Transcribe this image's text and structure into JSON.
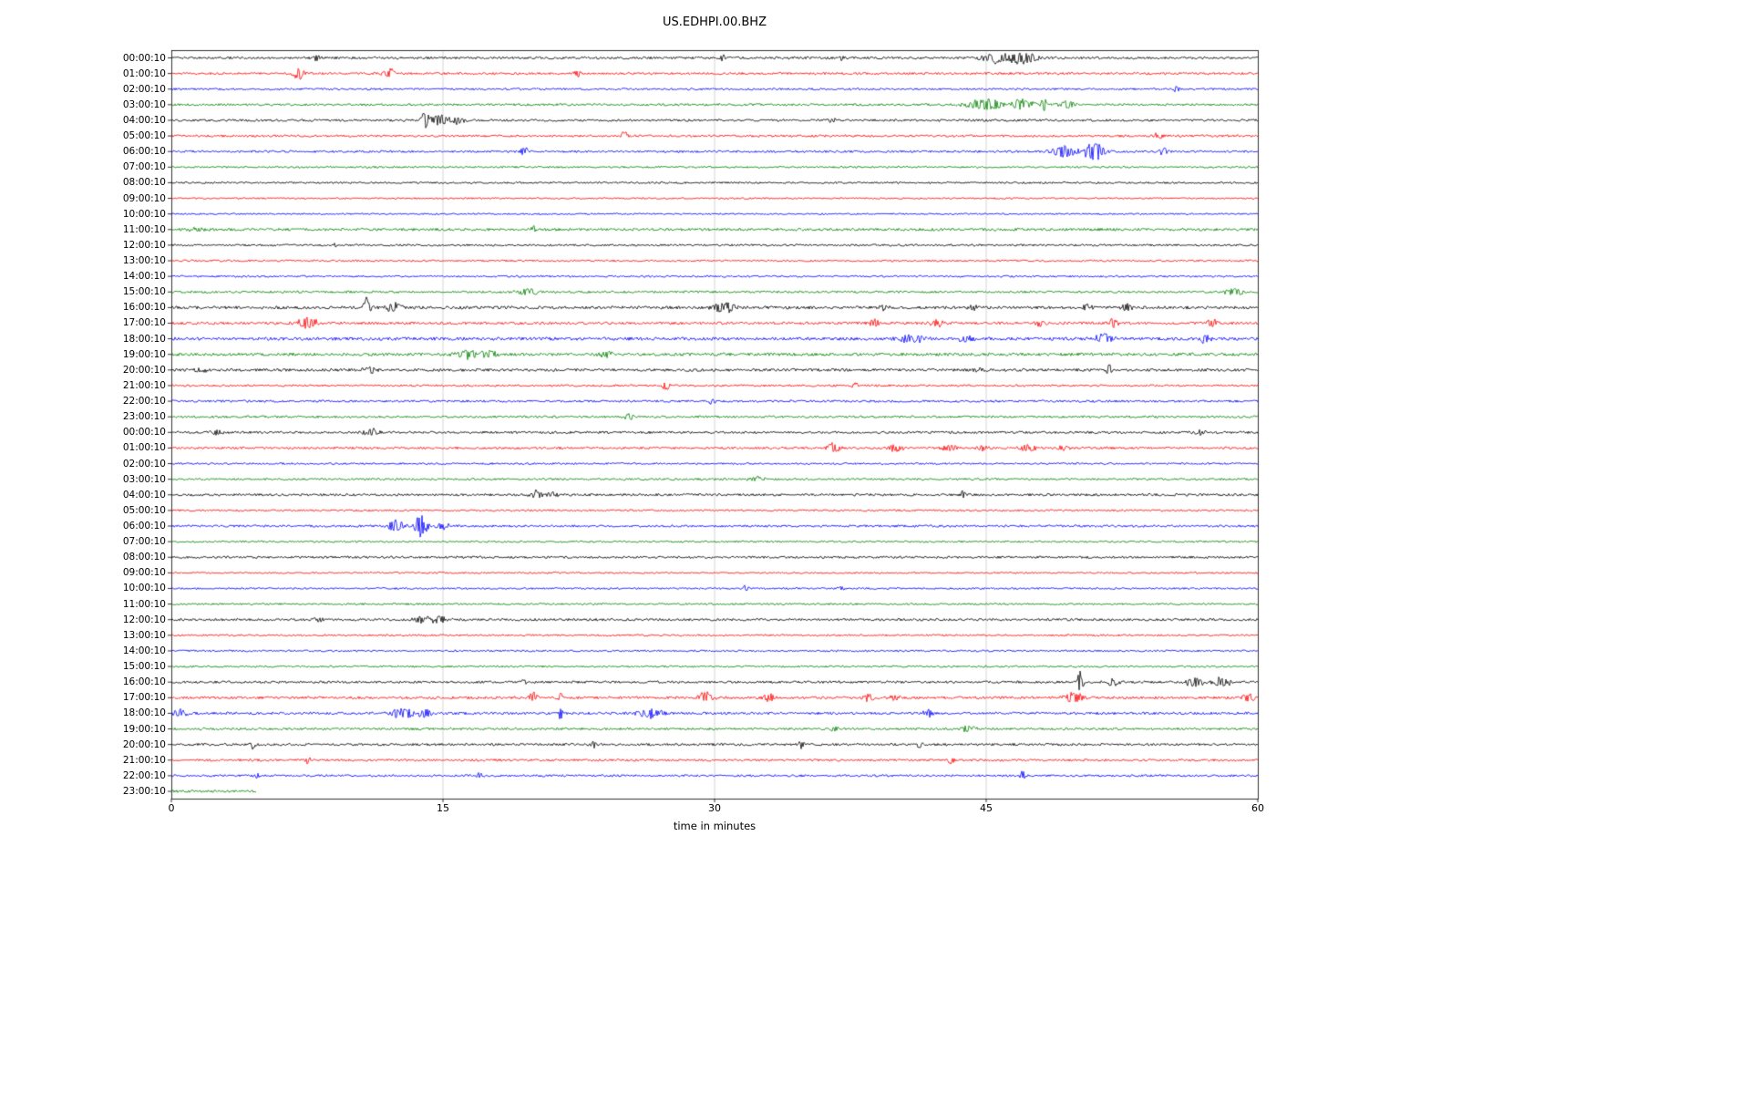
{
  "title": "US.EDHPI.00.BHZ",
  "xlabel": "time in minutes",
  "chart_data": {
    "type": "line",
    "title": "US.EDHPI.00.BHZ",
    "xlabel": "time in minutes",
    "xlim": [
      0,
      60
    ],
    "x_ticks": [
      "0",
      "15",
      "30",
      "45",
      "60"
    ],
    "x_tick_values": [
      0,
      15,
      30,
      45,
      60
    ],
    "grid": true,
    "grid_ticks": [
      15,
      30,
      45
    ],
    "colors_cycle": [
      "#000000",
      "#ff0000",
      "#0000ff",
      "#008000"
    ],
    "rows": [
      {
        "label": "00:00:10",
        "color": "#000000",
        "noise": 1.3,
        "events": [
          {
            "t": 8,
            "a": 4,
            "d": 0.15
          },
          {
            "t": 30.5,
            "a": 4,
            "d": 0.1
          },
          {
            "t": 37,
            "a": 3,
            "d": 0.1
          },
          {
            "t": 45.5,
            "a": 6,
            "d": 0.6
          },
          {
            "t": 47,
            "a": 7,
            "d": 0.5
          }
        ]
      },
      {
        "label": "01:00:10",
        "color": "#ff0000",
        "noise": 1.2,
        "events": [
          {
            "t": 7,
            "a": 7,
            "d": 0.2
          },
          {
            "t": 12,
            "a": 6,
            "d": 0.25
          },
          {
            "t": 22.5,
            "a": 3,
            "d": 0.2
          }
        ]
      },
      {
        "label": "02:00:10",
        "color": "#0000ff",
        "noise": 1.1,
        "events": [
          {
            "t": 55.5,
            "a": 4,
            "d": 0.1
          }
        ]
      },
      {
        "label": "03:00:10",
        "color": "#008000",
        "noise": 1.2,
        "events": [
          {
            "t": 45,
            "a": 6,
            "d": 0.8
          },
          {
            "t": 47,
            "a": 6,
            "d": 0.5
          },
          {
            "t": 48.2,
            "a": 9,
            "d": 0.1
          },
          {
            "t": 49.5,
            "a": 4,
            "d": 0.3
          }
        ]
      },
      {
        "label": "04:00:10",
        "color": "#000000",
        "noise": 1.2,
        "events": [
          {
            "t": 14,
            "a": 11,
            "d": 0.15
          },
          {
            "t": 14.8,
            "a": 6,
            "d": 0.4
          },
          {
            "t": 15.8,
            "a": 5,
            "d": 0.3
          },
          {
            "t": 36.5,
            "a": 2.5,
            "d": 0.2
          }
        ]
      },
      {
        "label": "05:00:10",
        "color": "#ff0000",
        "noise": 1.2,
        "events": [
          {
            "t": 25,
            "a": 5,
            "d": 0.15
          },
          {
            "t": 54.5,
            "a": 3,
            "d": 0.2
          }
        ]
      },
      {
        "label": "06:00:10",
        "color": "#0000ff",
        "noise": 1.2,
        "events": [
          {
            "t": 19.5,
            "a": 6,
            "d": 0.15
          },
          {
            "t": 49.3,
            "a": 7,
            "d": 0.5
          },
          {
            "t": 51,
            "a": 11,
            "d": 0.4
          },
          {
            "t": 54.8,
            "a": 4,
            "d": 0.2
          }
        ]
      },
      {
        "label": "07:00:10",
        "color": "#008000",
        "noise": 1.0,
        "events": []
      },
      {
        "label": "08:00:10",
        "color": "#000000",
        "noise": 1.0,
        "events": []
      },
      {
        "label": "09:00:10",
        "color": "#ff0000",
        "noise": 0.9,
        "events": []
      },
      {
        "label": "10:00:10",
        "color": "#0000ff",
        "noise": 0.9,
        "events": []
      },
      {
        "label": "11:00:10",
        "color": "#008000",
        "noise": 1.4,
        "events": [
          {
            "t": 1.5,
            "a": 2.5,
            "d": 0.5
          },
          {
            "t": 20,
            "a": 4,
            "d": 0.08
          }
        ]
      },
      {
        "label": "12:00:10",
        "color": "#000000",
        "noise": 1.1,
        "events": [
          {
            "t": 9,
            "a": 2.5,
            "d": 0.1
          }
        ]
      },
      {
        "label": "13:00:10",
        "color": "#ff0000",
        "noise": 1.0,
        "events": []
      },
      {
        "label": "14:00:10",
        "color": "#0000ff",
        "noise": 1.0,
        "events": []
      },
      {
        "label": "15:00:10",
        "color": "#008000",
        "noise": 1.2,
        "events": [
          {
            "t": 19.7,
            "a": 3.5,
            "d": 0.4
          },
          {
            "t": 58.7,
            "a": 3.5,
            "d": 0.4
          }
        ]
      },
      {
        "label": "16:00:10",
        "color": "#000000",
        "noise": 1.6,
        "events": [
          {
            "t": 10.8,
            "a": 12,
            "d": 0.15
          },
          {
            "t": 12.3,
            "a": 5,
            "d": 0.3
          },
          {
            "t": 30.5,
            "a": 6,
            "d": 0.4
          },
          {
            "t": 39.3,
            "a": 3.5,
            "d": 0.2
          },
          {
            "t": 44.3,
            "a": 3,
            "d": 0.2
          },
          {
            "t": 50.5,
            "a": 5,
            "d": 0.2
          },
          {
            "t": 52.8,
            "a": 5,
            "d": 0.2
          }
        ]
      },
      {
        "label": "17:00:10",
        "color": "#ff0000",
        "noise": 1.4,
        "events": [
          {
            "t": 7.5,
            "a": 7,
            "d": 0.4
          },
          {
            "t": 38.8,
            "a": 4,
            "d": 0.2
          },
          {
            "t": 42.3,
            "a": 5,
            "d": 0.25
          },
          {
            "t": 48,
            "a": 4,
            "d": 0.2
          },
          {
            "t": 52,
            "a": 5,
            "d": 0.2
          },
          {
            "t": 57.5,
            "a": 5,
            "d": 0.2
          }
        ]
      },
      {
        "label": "18:00:10",
        "color": "#0000ff",
        "noise": 1.7,
        "events": [
          {
            "t": 40.8,
            "a": 5,
            "d": 0.5
          },
          {
            "t": 44,
            "a": 4,
            "d": 0.4
          },
          {
            "t": 51.5,
            "a": 6,
            "d": 0.4
          },
          {
            "t": 57,
            "a": 4,
            "d": 0.3
          }
        ]
      },
      {
        "label": "19:00:10",
        "color": "#008000",
        "noise": 1.6,
        "events": [
          {
            "t": 16.3,
            "a": 6,
            "d": 0.4
          },
          {
            "t": 17.5,
            "a": 5,
            "d": 0.4
          },
          {
            "t": 24,
            "a": 4,
            "d": 0.3
          }
        ]
      },
      {
        "label": "20:00:10",
        "color": "#000000",
        "noise": 1.5,
        "events": [
          {
            "t": 1.5,
            "a": 3,
            "d": 0.3
          },
          {
            "t": 11,
            "a": 3.5,
            "d": 0.3
          },
          {
            "t": 44.5,
            "a": 3,
            "d": 0.2
          },
          {
            "t": 51.8,
            "a": 7,
            "d": 0.12
          }
        ]
      },
      {
        "label": "21:00:10",
        "color": "#ff0000",
        "noise": 1.1,
        "events": [
          {
            "t": 27.3,
            "a": 6,
            "d": 0.12
          },
          {
            "t": 37.8,
            "a": 3,
            "d": 0.15
          }
        ]
      },
      {
        "label": "22:00:10",
        "color": "#0000ff",
        "noise": 1.2,
        "events": [
          {
            "t": 29.8,
            "a": 4,
            "d": 0.15
          }
        ]
      },
      {
        "label": "23:00:10",
        "color": "#008000",
        "noise": 1.2,
        "events": [
          {
            "t": 25.3,
            "a": 4,
            "d": 0.2
          }
        ]
      },
      {
        "label": "00:00:10",
        "color": "#000000",
        "noise": 1.3,
        "events": [
          {
            "t": 2.5,
            "a": 3,
            "d": 0.3
          },
          {
            "t": 11,
            "a": 4,
            "d": 0.4
          },
          {
            "t": 56.8,
            "a": 4,
            "d": 0.2
          }
        ]
      },
      {
        "label": "01:00:10",
        "color": "#ff0000",
        "noise": 1.2,
        "events": [
          {
            "t": 36.6,
            "a": 7,
            "d": 0.25
          },
          {
            "t": 40,
            "a": 4,
            "d": 0.3
          },
          {
            "t": 43,
            "a": 4,
            "d": 0.3
          },
          {
            "t": 44.8,
            "a": 3.5,
            "d": 0.2
          },
          {
            "t": 47.3,
            "a": 4,
            "d": 0.3
          },
          {
            "t": 49.3,
            "a": 3.5,
            "d": 0.2
          }
        ]
      },
      {
        "label": "02:00:10",
        "color": "#0000ff",
        "noise": 1.0,
        "events": []
      },
      {
        "label": "03:00:10",
        "color": "#008000",
        "noise": 1.1,
        "events": [
          {
            "t": 32.3,
            "a": 3,
            "d": 0.3
          }
        ]
      },
      {
        "label": "04:00:10",
        "color": "#000000",
        "noise": 1.3,
        "events": [
          {
            "t": 20.2,
            "a": 5,
            "d": 0.25
          },
          {
            "t": 21,
            "a": 4,
            "d": 0.2
          },
          {
            "t": 43.7,
            "a": 4,
            "d": 0.1
          }
        ]
      },
      {
        "label": "05:00:10",
        "color": "#ff0000",
        "noise": 1.0,
        "events": []
      },
      {
        "label": "06:00:10",
        "color": "#0000ff",
        "noise": 1.2,
        "events": [
          {
            "t": 12.4,
            "a": 8,
            "d": 0.3
          },
          {
            "t": 13.8,
            "a": 12,
            "d": 0.25
          },
          {
            "t": 15,
            "a": 4,
            "d": 0.3
          }
        ]
      },
      {
        "label": "07:00:10",
        "color": "#008000",
        "noise": 1.0,
        "events": []
      },
      {
        "label": "08:00:10",
        "color": "#000000",
        "noise": 1.2,
        "events": []
      },
      {
        "label": "09:00:10",
        "color": "#ff0000",
        "noise": 0.9,
        "events": []
      },
      {
        "label": "10:00:10",
        "color": "#0000ff",
        "noise": 1.0,
        "events": [
          {
            "t": 31.7,
            "a": 4,
            "d": 0.12
          },
          {
            "t": 37,
            "a": 3,
            "d": 0.12
          }
        ]
      },
      {
        "label": "11:00:10",
        "color": "#008000",
        "noise": 1.0,
        "events": []
      },
      {
        "label": "12:00:10",
        "color": "#000000",
        "noise": 1.3,
        "events": [
          {
            "t": 8,
            "a": 2.5,
            "d": 0.3
          },
          {
            "t": 13.8,
            "a": 4,
            "d": 0.4
          },
          {
            "t": 14.8,
            "a": 4,
            "d": 0.3
          }
        ]
      },
      {
        "label": "13:00:10",
        "color": "#ff0000",
        "noise": 1.0,
        "events": []
      },
      {
        "label": "14:00:10",
        "color": "#0000ff",
        "noise": 1.0,
        "events": []
      },
      {
        "label": "15:00:10",
        "color": "#008000",
        "noise": 1.0,
        "events": []
      },
      {
        "label": "16:00:10",
        "color": "#000000",
        "noise": 1.3,
        "events": [
          {
            "t": 19.5,
            "a": 4,
            "d": 0.1
          },
          {
            "t": 50.2,
            "a": 14,
            "d": 0.12
          },
          {
            "t": 52,
            "a": 4,
            "d": 0.3
          },
          {
            "t": 56.5,
            "a": 5,
            "d": 0.4
          },
          {
            "t": 58,
            "a": 5,
            "d": 0.4
          }
        ]
      },
      {
        "label": "17:00:10",
        "color": "#ff0000",
        "noise": 1.4,
        "events": [
          {
            "t": 20,
            "a": 7,
            "d": 0.15
          },
          {
            "t": 21.5,
            "a": 7,
            "d": 0.1
          },
          {
            "t": 29.5,
            "a": 6,
            "d": 0.3
          },
          {
            "t": 33,
            "a": 5,
            "d": 0.25
          },
          {
            "t": 38.5,
            "a": 4,
            "d": 0.2
          },
          {
            "t": 40,
            "a": 4,
            "d": 0.2
          },
          {
            "t": 49.8,
            "a": 6,
            "d": 0.4
          },
          {
            "t": 59.5,
            "a": 5,
            "d": 0.2
          }
        ]
      },
      {
        "label": "18:00:10",
        "color": "#0000ff",
        "noise": 1.4,
        "events": [
          {
            "t": 0.5,
            "a": 4,
            "d": 0.3
          },
          {
            "t": 12.8,
            "a": 6,
            "d": 0.5
          },
          {
            "t": 14,
            "a": 4,
            "d": 0.3
          },
          {
            "t": 21.5,
            "a": 8,
            "d": 0.08
          },
          {
            "t": 26.5,
            "a": 5,
            "d": 0.5
          },
          {
            "t": 41.8,
            "a": 4,
            "d": 0.2
          }
        ]
      },
      {
        "label": "19:00:10",
        "color": "#008000",
        "noise": 1.2,
        "events": [
          {
            "t": 36.6,
            "a": 4,
            "d": 0.15
          },
          {
            "t": 44,
            "a": 3.5,
            "d": 0.3
          }
        ]
      },
      {
        "label": "20:00:10",
        "color": "#000000",
        "noise": 1.3,
        "events": [
          {
            "t": 4.5,
            "a": 6,
            "d": 0.1
          },
          {
            "t": 23.3,
            "a": 3.5,
            "d": 0.15
          },
          {
            "t": 34.8,
            "a": 5,
            "d": 0.12
          },
          {
            "t": 41.3,
            "a": 3.5,
            "d": 0.15
          }
        ]
      },
      {
        "label": "21:00:10",
        "color": "#ff0000",
        "noise": 1.2,
        "events": [
          {
            "t": 7.5,
            "a": 3.5,
            "d": 0.15
          },
          {
            "t": 43,
            "a": 4,
            "d": 0.15
          }
        ]
      },
      {
        "label": "22:00:10",
        "color": "#0000ff",
        "noise": 1.2,
        "events": [
          {
            "t": 4.8,
            "a": 4,
            "d": 0.12
          },
          {
            "t": 17,
            "a": 3,
            "d": 0.15
          },
          {
            "t": 47,
            "a": 5,
            "d": 0.12
          }
        ]
      },
      {
        "label": "23:00:10",
        "color": "#008000",
        "noise": 1.3,
        "extent": [
          0,
          4.7
        ],
        "events": []
      }
    ]
  }
}
